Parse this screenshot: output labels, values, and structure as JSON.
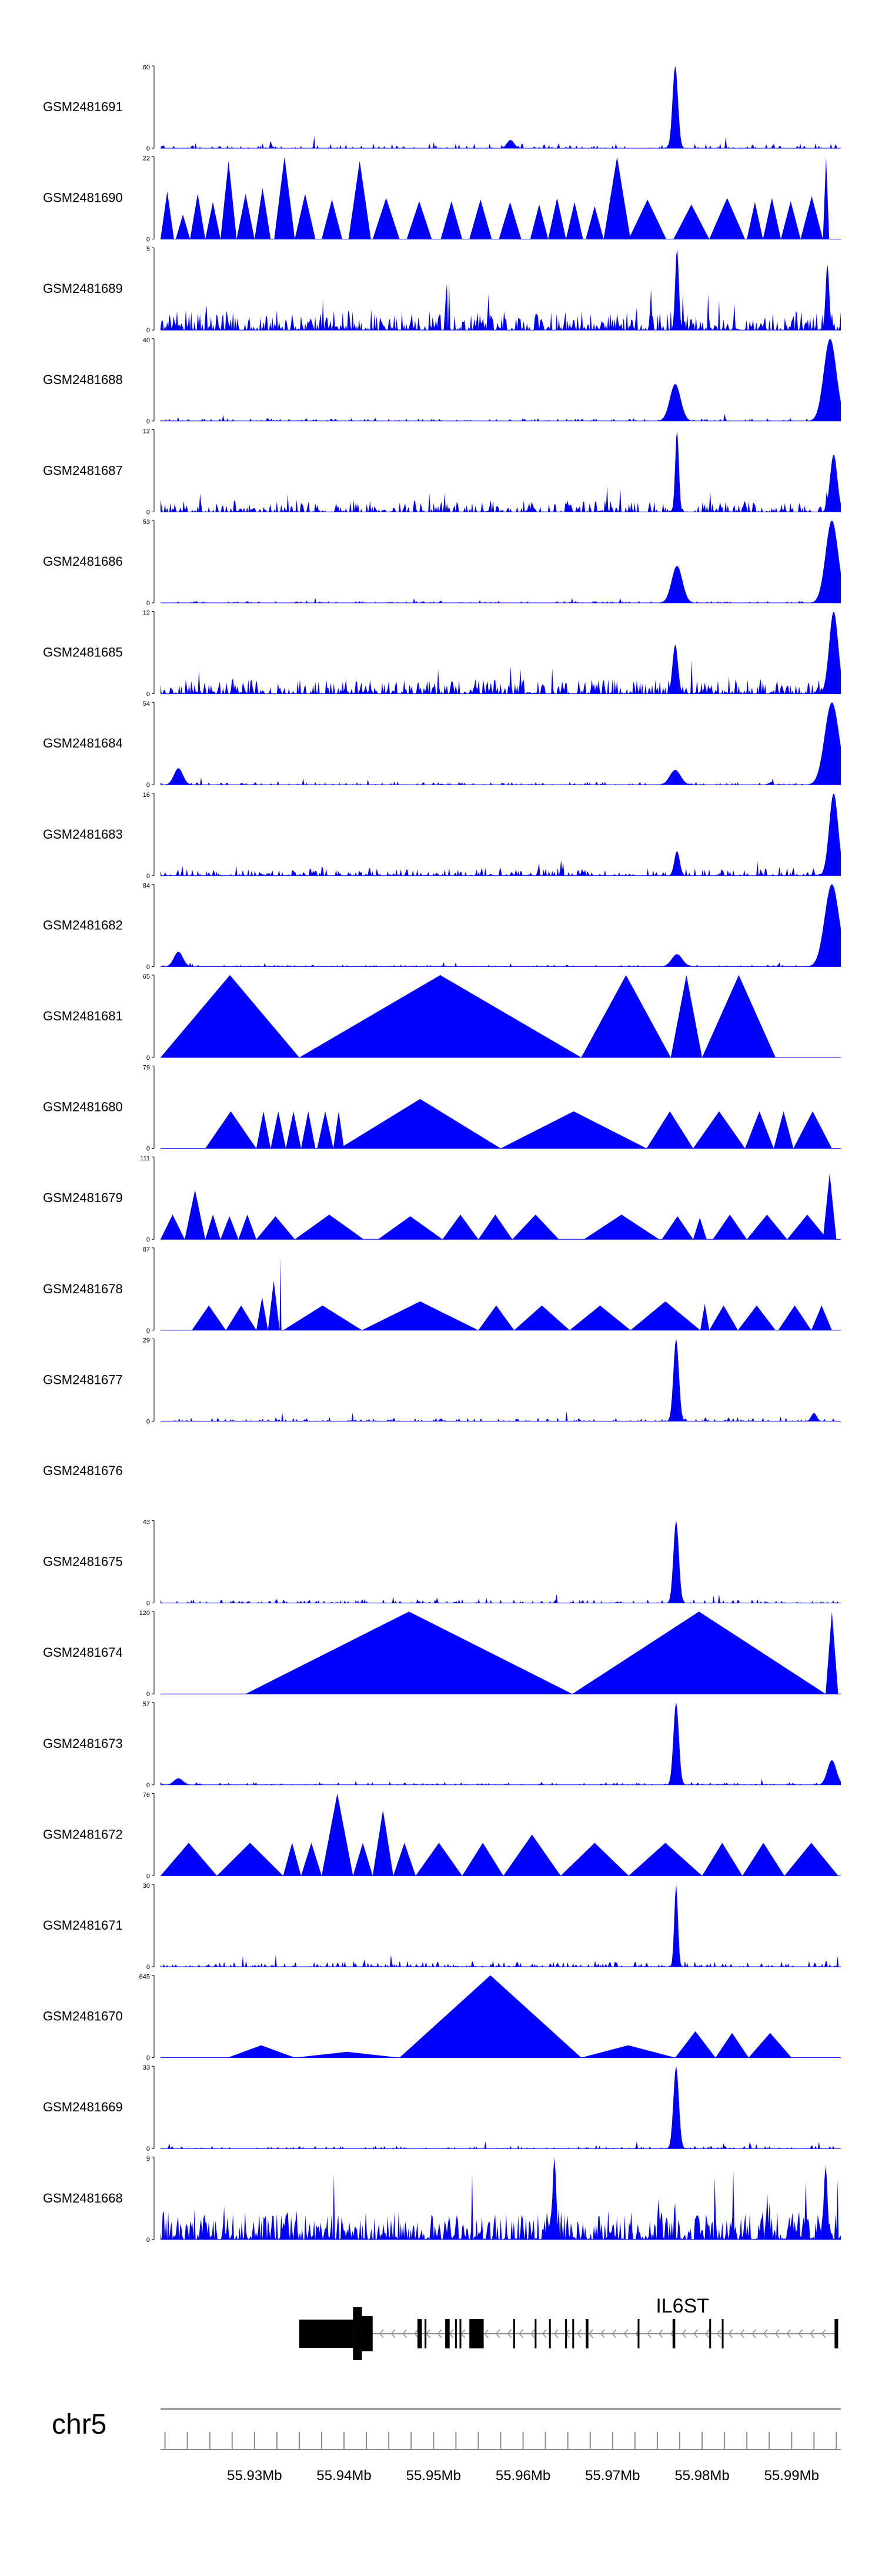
{
  "chart_data": {
    "type": "area",
    "title": "",
    "chromosome": "chr5",
    "gene": {
      "name": "IL6ST",
      "start": 55.935,
      "end": 55.995,
      "strand": "-",
      "exons": [
        [
          55.935,
          55.941
        ],
        [
          55.941,
          55.942
        ],
        [
          55.942,
          55.9432
        ],
        [
          55.9482,
          55.9487
        ],
        [
          55.949,
          55.9492
        ],
        [
          55.9513,
          55.9518
        ],
        [
          55.9524,
          55.9526
        ],
        [
          55.9529,
          55.9531
        ],
        [
          55.954,
          55.9556
        ],
        [
          55.9589,
          55.9591
        ],
        [
          55.9613,
          55.9615
        ],
        [
          55.9629,
          55.9631
        ],
        [
          55.9647,
          55.9649
        ],
        [
          55.9655,
          55.9657
        ],
        [
          55.967,
          55.9673
        ],
        [
          55.9728,
          55.973
        ],
        [
          55.9767,
          55.977
        ],
        [
          55.9808,
          55.981
        ],
        [
          55.9822,
          55.9824
        ],
        [
          55.9948,
          55.9952
        ]
      ]
    },
    "xaxis": {
      "range": [
        55.9195,
        55.9955
      ],
      "unit": "Mb",
      "major_ticks": [
        55.93,
        55.94,
        55.95,
        55.96,
        55.97,
        55.98,
        55.99
      ],
      "major_tick_labels": [
        "55.93Mb",
        "55.94Mb",
        "55.95Mb",
        "55.96Mb",
        "55.97Mb",
        "55.98Mb",
        "55.99Mb"
      ],
      "minor_step": 0.0025
    },
    "tracks": [
      {
        "name": "GSM2481691",
        "ymax": "60",
        "shape": "noise",
        "base": 0.05,
        "density": 0.35,
        "seed": 11,
        "peaks": [
          {
            "pos": 55.977,
            "h": 1.0,
            "w": 0.0003
          },
          {
            "pos": 55.9586,
            "h": 0.1,
            "w": 0.0004
          }
        ]
      },
      {
        "name": "GSM2481690",
        "ymax": "22",
        "shape": "tri",
        "triangles": [
          [
            55.9195,
            55.921,
            0.58
          ],
          [
            55.9212,
            55.9228,
            0.3
          ],
          [
            55.9228,
            55.9245,
            0.55
          ],
          [
            55.9245,
            55.9262,
            0.45
          ],
          [
            55.9262,
            55.928,
            0.95
          ],
          [
            55.928,
            55.93,
            0.55
          ],
          [
            55.93,
            55.9318,
            0.62
          ],
          [
            55.9322,
            55.9345,
            1.0
          ],
          [
            55.9345,
            55.9368,
            0.55
          ],
          [
            55.9375,
            55.9398,
            0.48
          ],
          [
            55.9405,
            55.943,
            0.95
          ],
          [
            55.9432,
            55.9462,
            0.5
          ],
          [
            55.947,
            55.9498,
            0.46
          ],
          [
            55.9508,
            55.9532,
            0.46
          ],
          [
            55.954,
            55.9565,
            0.48
          ],
          [
            55.9573,
            55.9598,
            0.45
          ],
          [
            55.9608,
            55.9628,
            0.42
          ],
          [
            55.9628,
            55.9648,
            0.5
          ],
          [
            55.9648,
            55.9667,
            0.45
          ],
          [
            55.967,
            55.969,
            0.4
          ],
          [
            55.969,
            55.972,
            1.0
          ],
          [
            55.9718,
            55.976,
            0.48
          ],
          [
            55.9768,
            55.9808,
            0.42
          ],
          [
            55.9808,
            55.9848,
            0.5
          ],
          [
            55.985,
            55.9868,
            0.45
          ],
          [
            55.9868,
            55.9888,
            0.5
          ],
          [
            55.9888,
            55.991,
            0.46
          ],
          [
            55.991,
            55.9935,
            0.52
          ],
          [
            55.9935,
            55.9942,
            1.0
          ]
        ]
      },
      {
        "name": "GSM2481689",
        "ymax": "5",
        "shape": "noise",
        "base": 0.2,
        "density": 0.85,
        "seed": 23,
        "peaks": [
          {
            "pos": 55.9772,
            "h": 1.0,
            "w": 0.0002
          },
          {
            "pos": 55.994,
            "h": 0.8,
            "w": 0.0002
          }
        ]
      },
      {
        "name": "GSM2481688",
        "ymax": "40",
        "shape": "noise",
        "base": 0.03,
        "density": 0.4,
        "seed": 37,
        "peaks": [
          {
            "pos": 55.977,
            "h": 0.45,
            "w": 0.0006
          },
          {
            "pos": 55.9943,
            "h": 1.0,
            "w": 0.0007
          },
          {
            "pos": 55.9932,
            "h": 0.2,
            "w": 0.0003
          }
        ]
      },
      {
        "name": "GSM2481687",
        "ymax": "12",
        "shape": "noise",
        "base": 0.12,
        "density": 0.7,
        "seed": 41,
        "peaks": [
          {
            "pos": 55.9772,
            "h": 1.0,
            "w": 0.0002
          },
          {
            "pos": 55.9947,
            "h": 0.7,
            "w": 0.0004
          }
        ]
      },
      {
        "name": "GSM2481686",
        "ymax": "53",
        "shape": "noise",
        "base": 0.02,
        "density": 0.35,
        "seed": 53,
        "peaks": [
          {
            "pos": 55.9772,
            "h": 0.45,
            "w": 0.0006
          },
          {
            "pos": 55.9945,
            "h": 1.0,
            "w": 0.0007
          }
        ]
      },
      {
        "name": "GSM2481685",
        "ymax": "12",
        "shape": "noise",
        "base": 0.15,
        "density": 0.85,
        "seed": 61,
        "peaks": [
          {
            "pos": 55.977,
            "h": 0.6,
            "w": 0.0003
          },
          {
            "pos": 55.9947,
            "h": 1.0,
            "w": 0.0005
          }
        ]
      },
      {
        "name": "GSM2481684",
        "ymax": "54",
        "shape": "noise",
        "base": 0.03,
        "density": 0.4,
        "seed": 71,
        "peaks": [
          {
            "pos": 55.9215,
            "h": 0.2,
            "w": 0.0005
          },
          {
            "pos": 55.977,
            "h": 0.18,
            "w": 0.0006
          },
          {
            "pos": 55.9945,
            "h": 1.0,
            "w": 0.0008
          }
        ]
      },
      {
        "name": "GSM2481683",
        "ymax": "16",
        "shape": "noise",
        "base": 0.08,
        "density": 0.6,
        "seed": 83,
        "peaks": [
          {
            "pos": 55.9772,
            "h": 0.3,
            "w": 0.0003
          },
          {
            "pos": 55.9947,
            "h": 1.0,
            "w": 0.0005
          }
        ]
      },
      {
        "name": "GSM2481682",
        "ymax": "84",
        "shape": "noise",
        "base": 0.02,
        "density": 0.35,
        "seed": 97,
        "peaks": [
          {
            "pos": 55.9215,
            "h": 0.18,
            "w": 0.0005
          },
          {
            "pos": 55.9772,
            "h": 0.15,
            "w": 0.0006
          },
          {
            "pos": 55.9945,
            "h": 1.0,
            "w": 0.0008
          }
        ]
      },
      {
        "name": "GSM2481681",
        "ymax": "65",
        "shape": "tri",
        "triangles": [
          [
            55.9195,
            55.935,
            1.0
          ],
          [
            55.935,
            55.9665,
            1.0
          ],
          [
            55.9665,
            55.9765,
            1.0
          ],
          [
            55.9765,
            55.98,
            1.0
          ],
          [
            55.98,
            55.9882,
            1.0
          ]
        ]
      },
      {
        "name": "GSM2481680",
        "ymax": "79",
        "shape": "tri",
        "triangles": [
          [
            55.9245,
            55.9302,
            0.45
          ],
          [
            55.9302,
            55.9318,
            0.45
          ],
          [
            55.9318,
            55.9335,
            0.45
          ],
          [
            55.9335,
            55.9352,
            0.45
          ],
          [
            55.9352,
            55.9368,
            0.45
          ],
          [
            55.937,
            55.9388,
            0.45
          ],
          [
            55.9388,
            55.94,
            0.45
          ],
          [
            55.9395,
            55.9575,
            0.6
          ],
          [
            55.9575,
            55.9738,
            0.45
          ],
          [
            55.9738,
            55.979,
            0.45
          ],
          [
            55.979,
            55.9848,
            0.45
          ],
          [
            55.9848,
            55.988,
            0.45
          ],
          [
            55.988,
            55.9902,
            0.45
          ],
          [
            55.9902,
            55.9945,
            0.45
          ]
        ]
      },
      {
        "name": "GSM2481679",
        "ymax": "111",
        "shape": "tri",
        "triangles": [
          [
            55.9195,
            55.9222,
            0.3
          ],
          [
            55.9222,
            55.9245,
            0.6
          ],
          [
            55.9245,
            55.9262,
            0.3
          ],
          [
            55.9262,
            55.9282,
            0.28
          ],
          [
            55.9282,
            55.9302,
            0.3
          ],
          [
            55.9302,
            55.9345,
            0.28
          ],
          [
            55.9345,
            55.9422,
            0.3
          ],
          [
            55.9438,
            55.951,
            0.28
          ],
          [
            55.951,
            55.955,
            0.3
          ],
          [
            55.955,
            55.9588,
            0.3
          ],
          [
            55.9588,
            55.964,
            0.3
          ],
          [
            55.9668,
            55.9752,
            0.3
          ],
          [
            55.9755,
            55.979,
            0.28
          ],
          [
            55.979,
            55.9805,
            0.26
          ],
          [
            55.9812,
            55.985,
            0.3
          ],
          [
            55.985,
            55.9895,
            0.3
          ],
          [
            55.9895,
            55.994,
            0.3
          ],
          [
            55.9935,
            55.995,
            0.8
          ]
        ]
      },
      {
        "name": "GSM2481678",
        "ymax": "87",
        "shape": "tri",
        "triangles": [
          [
            55.923,
            55.9268,
            0.3
          ],
          [
            55.9268,
            55.9302,
            0.3
          ],
          [
            55.9302,
            55.9315,
            0.4
          ],
          [
            55.9315,
            55.9328,
            0.6
          ],
          [
            55.9328,
            55.933,
            0.9
          ],
          [
            55.9332,
            55.942,
            0.3
          ],
          [
            55.942,
            55.955,
            0.35
          ],
          [
            55.955,
            55.959,
            0.3
          ],
          [
            55.959,
            55.9652,
            0.3
          ],
          [
            55.9652,
            55.972,
            0.3
          ],
          [
            55.972,
            55.9798,
            0.35
          ],
          [
            55.9798,
            55.9808,
            0.32
          ],
          [
            55.9808,
            55.984,
            0.3
          ],
          [
            55.984,
            55.9882,
            0.3
          ],
          [
            55.9885,
            55.9922,
            0.3
          ],
          [
            55.9922,
            55.9945,
            0.3
          ]
        ]
      },
      {
        "name": "GSM2481677",
        "ymax": "29",
        "shape": "noise",
        "base": 0.04,
        "density": 0.4,
        "seed": 131,
        "peaks": [
          {
            "pos": 55.9771,
            "h": 1.0,
            "w": 0.0003
          },
          {
            "pos": 55.9925,
            "h": 0.1,
            "w": 0.0003
          }
        ]
      },
      {
        "name": "GSM2481676",
        "ymax": "",
        "shape": "empty"
      },
      {
        "name": "GSM2481675",
        "ymax": "43",
        "shape": "noise",
        "base": 0.04,
        "density": 0.4,
        "seed": 151,
        "peaks": [
          {
            "pos": 55.9771,
            "h": 1.0,
            "w": 0.0003
          }
        ]
      },
      {
        "name": "GSM2481674",
        "ymax": "120",
        "shape": "tri",
        "triangles": [
          [
            55.929,
            55.9655,
            1.0
          ],
          [
            55.9655,
            55.9938,
            1.0
          ],
          [
            55.9938,
            55.9952,
            1.0
          ]
        ]
      },
      {
        "name": "GSM2481673",
        "ymax": "57",
        "shape": "noise",
        "base": 0.03,
        "density": 0.4,
        "seed": 173,
        "peaks": [
          {
            "pos": 55.9771,
            "h": 1.0,
            "w": 0.0003
          },
          {
            "pos": 55.9945,
            "h": 0.3,
            "w": 0.0005
          },
          {
            "pos": 55.9215,
            "h": 0.08,
            "w": 0.0005
          }
        ]
      },
      {
        "name": "GSM2481672",
        "ymax": "76",
        "shape": "tri",
        "triangles": [
          [
            55.9195,
            55.9258,
            0.4
          ],
          [
            55.9258,
            55.9332,
            0.4
          ],
          [
            55.9332,
            55.9352,
            0.4
          ],
          [
            55.9352,
            55.9375,
            0.4
          ],
          [
            55.9375,
            55.941,
            1.0
          ],
          [
            55.941,
            55.9432,
            0.4
          ],
          [
            55.9432,
            55.9455,
            0.8
          ],
          [
            55.9455,
            55.948,
            0.4
          ],
          [
            55.948,
            55.9532,
            0.4
          ],
          [
            55.9532,
            55.9578,
            0.4
          ],
          [
            55.9578,
            55.9642,
            0.5
          ],
          [
            55.9642,
            55.9718,
            0.4
          ],
          [
            55.9718,
            55.98,
            0.4
          ],
          [
            55.98,
            55.9845,
            0.4
          ],
          [
            55.9845,
            55.9892,
            0.4
          ],
          [
            55.9892,
            55.9952,
            0.4
          ]
        ]
      },
      {
        "name": "GSM2481671",
        "ymax": "30",
        "shape": "noise",
        "base": 0.06,
        "density": 0.5,
        "seed": 191,
        "peaks": [
          {
            "pos": 55.9771,
            "h": 1.0,
            "w": 0.0002
          }
        ]
      },
      {
        "name": "GSM2481670",
        "ymax": "645",
        "shape": "tri",
        "triangles": [
          [
            55.927,
            55.9345,
            0.15
          ],
          [
            55.9345,
            55.9462,
            0.07
          ],
          [
            55.9462,
            55.9665,
            1.0
          ],
          [
            55.9665,
            55.977,
            0.15
          ],
          [
            55.977,
            55.9815,
            0.32
          ],
          [
            55.9815,
            55.9852,
            0.3
          ],
          [
            55.9852,
            55.99,
            0.3
          ]
        ]
      },
      {
        "name": "GSM2481669",
        "ymax": "33",
        "shape": "noise",
        "base": 0.03,
        "density": 0.4,
        "seed": 211,
        "peaks": [
          {
            "pos": 55.9771,
            "h": 1.0,
            "w": 0.0003
          }
        ]
      },
      {
        "name": "GSM2481668",
        "ymax": "9",
        "shape": "noise",
        "base": 0.3,
        "density": 0.95,
        "seed": 223,
        "peaks": [
          {
            "pos": 55.9635,
            "h": 1.0,
            "w": 0.0002
          },
          {
            "pos": 55.9938,
            "h": 0.9,
            "w": 0.0002
          }
        ]
      }
    ]
  }
}
